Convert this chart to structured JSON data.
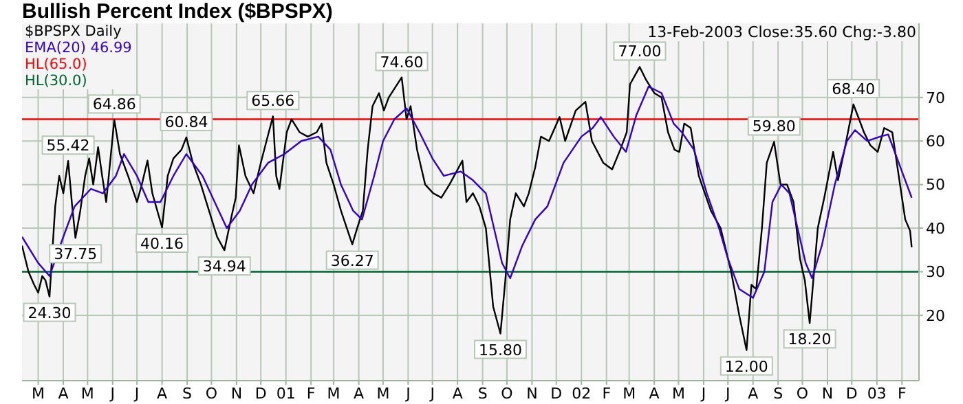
{
  "chart_data": {
    "type": "line",
    "title": "Bullish Percent Index ($BPSPX)",
    "xlim": [
      "2000-02-10",
      "2003-02-22"
    ],
    "ylim": [
      5,
      87
    ],
    "yticks": [
      20,
      30,
      40,
      50,
      60,
      70
    ],
    "xticks": [
      {
        "value": "2000-03-01",
        "label": "M"
      },
      {
        "value": "2000-04-01",
        "label": "A"
      },
      {
        "value": "2000-05-01",
        "label": "M"
      },
      {
        "value": "2000-06-01",
        "label": "J"
      },
      {
        "value": "2000-07-01",
        "label": "J"
      },
      {
        "value": "2000-08-01",
        "label": "A"
      },
      {
        "value": "2000-09-01",
        "label": "S"
      },
      {
        "value": "2000-10-01",
        "label": "O"
      },
      {
        "value": "2000-11-01",
        "label": "N"
      },
      {
        "value": "2000-12-01",
        "label": "D"
      },
      {
        "value": "2001-01-01",
        "label": "01"
      },
      {
        "value": "2001-02-01",
        "label": "F"
      },
      {
        "value": "2001-03-01",
        "label": "M"
      },
      {
        "value": "2001-04-01",
        "label": "A"
      },
      {
        "value": "2001-05-01",
        "label": "M"
      },
      {
        "value": "2001-06-01",
        "label": "J"
      },
      {
        "value": "2001-07-01",
        "label": "J"
      },
      {
        "value": "2001-08-01",
        "label": "A"
      },
      {
        "value": "2001-09-01",
        "label": "S"
      },
      {
        "value": "2001-10-01",
        "label": "O"
      },
      {
        "value": "2001-11-01",
        "label": "N"
      },
      {
        "value": "2001-12-01",
        "label": "D"
      },
      {
        "value": "2002-01-01",
        "label": "02"
      },
      {
        "value": "2002-02-01",
        "label": "F"
      },
      {
        "value": "2002-03-01",
        "label": "M"
      },
      {
        "value": "2002-04-01",
        "label": "A"
      },
      {
        "value": "2002-05-01",
        "label": "M"
      },
      {
        "value": "2002-06-01",
        "label": "J"
      },
      {
        "value": "2002-07-01",
        "label": "J"
      },
      {
        "value": "2002-08-01",
        "label": "A"
      },
      {
        "value": "2002-09-01",
        "label": "S"
      },
      {
        "value": "2002-10-01",
        "label": "O"
      },
      {
        "value": "2002-11-01",
        "label": "N"
      },
      {
        "value": "2002-12-01",
        "label": "D"
      },
      {
        "value": "2003-01-01",
        "label": "03"
      },
      {
        "value": "2003-02-01",
        "label": "F"
      }
    ],
    "grid": true,
    "legend": "top left",
    "marker": "none",
    "line_style": "solid",
    "series": [
      {
        "name": "$BPSPX Daily",
        "color": "#000000",
        "x": [
          "2000-02-10",
          "2000-02-18",
          "2000-02-25",
          "2000-03-01",
          "2000-03-06",
          "2000-03-10",
          "2000-03-15",
          "2000-03-22",
          "2000-03-27",
          "2000-04-01",
          "2000-04-07",
          "2000-04-12",
          "2000-04-16",
          "2000-04-22",
          "2000-04-28",
          "2000-05-03",
          "2000-05-08",
          "2000-05-14",
          "2000-05-19",
          "2000-05-24",
          "2000-06-03",
          "2000-06-10",
          "2000-06-20",
          "2000-07-01",
          "2000-07-07",
          "2000-07-14",
          "2000-07-20",
          "2000-08-01",
          "2000-08-08",
          "2000-08-15",
          "2000-08-25",
          "2000-08-31",
          "2000-09-08",
          "2000-09-18",
          "2000-09-28",
          "2000-10-08",
          "2000-10-17",
          "2000-10-25",
          "2000-10-31",
          "2000-11-04",
          "2000-11-12",
          "2000-11-22",
          "2000-12-01",
          "2000-12-08",
          "2000-12-16",
          "2000-12-20",
          "2000-12-24",
          "2001-01-02",
          "2001-01-08",
          "2001-01-18",
          "2001-01-28",
          "2001-02-08",
          "2001-02-14",
          "2001-02-20",
          "2001-03-01",
          "2001-03-10",
          "2001-03-24",
          "2001-03-30",
          "2001-04-06",
          "2001-04-12",
          "2001-04-18",
          "2001-04-26",
          "2001-05-02",
          "2001-05-08",
          "2001-05-24",
          "2001-05-30",
          "2001-06-04",
          "2001-06-12",
          "2001-06-22",
          "2001-07-02",
          "2001-07-12",
          "2001-07-22",
          "2001-08-07",
          "2001-08-12",
          "2001-08-20",
          "2001-08-28",
          "2001-09-05",
          "2001-09-14",
          "2001-09-23",
          "2001-09-29",
          "2001-10-05",
          "2001-10-12",
          "2001-10-22",
          "2001-10-28",
          "2001-11-05",
          "2001-11-12",
          "2001-11-22",
          "2001-12-05",
          "2001-12-12",
          "2001-12-25",
          "2002-01-06",
          "2002-01-14",
          "2002-01-28",
          "2002-02-08",
          "2002-02-18",
          "2002-02-26",
          "2002-03-02",
          "2002-03-14",
          "2002-03-22",
          "2002-04-01",
          "2002-04-10",
          "2002-04-18",
          "2002-04-26",
          "2002-05-02",
          "2002-05-08",
          "2002-05-16",
          "2002-05-26",
          "2002-06-10",
          "2002-06-22",
          "2002-07-05",
          "2002-07-15",
          "2002-07-24",
          "2002-07-30",
          "2002-08-05",
          "2002-08-12",
          "2002-08-18",
          "2002-08-27",
          "2002-09-04",
          "2002-09-12",
          "2002-09-20",
          "2002-09-28",
          "2002-10-04",
          "2002-10-10",
          "2002-10-20",
          "2002-10-28",
          "2002-11-08",
          "2002-11-14",
          "2002-11-22",
          "2002-12-03",
          "2002-12-10",
          "2002-12-16",
          "2002-12-24",
          "2003-01-02",
          "2003-01-10",
          "2003-01-20",
          "2003-01-28",
          "2003-02-05",
          "2003-02-11",
          "2003-02-13"
        ],
        "values": [
          36,
          30,
          27,
          25.2,
          29,
          28,
          24.3,
          45,
          52,
          48,
          55.42,
          45,
          37.75,
          44,
          52,
          56,
          50,
          58.6,
          52,
          46,
          64.86,
          57,
          52,
          46,
          50,
          55.5,
          48,
          40.16,
          52,
          56,
          58,
          60.84,
          55,
          50,
          44,
          38,
          34.94,
          42,
          47,
          59,
          52,
          48,
          55,
          60,
          65.66,
          52,
          49,
          62,
          65,
          62,
          61,
          62,
          64,
          55,
          50,
          44,
          36.27,
          40,
          44,
          58,
          68,
          71,
          67,
          70,
          74.6,
          65,
          68,
          58,
          50,
          48,
          47,
          50,
          55.5,
          46,
          48,
          45,
          40,
          22,
          15.8,
          28,
          42,
          48,
          45,
          48,
          54,
          61,
          60,
          65.5,
          60,
          67,
          69,
          60,
          55,
          53.5,
          58,
          62,
          73,
          77,
          74,
          71,
          70,
          62,
          58,
          57.5,
          64,
          63,
          52,
          44,
          40,
          30,
          20,
          12,
          27,
          26,
          40,
          55,
          59.8,
          50,
          50,
          46,
          33,
          28,
          18.2,
          40,
          47,
          57.5,
          51,
          58,
          68.4,
          65,
          62,
          59,
          57.5,
          63,
          62,
          52,
          42,
          39.4,
          35.6
        ]
      },
      {
        "name": "EMA(20) 46.99",
        "color": "#3300cc",
        "x": [
          "2000-02-10",
          "2000-03-01",
          "2000-03-15",
          "2000-04-01",
          "2000-04-15",
          "2000-05-05",
          "2000-05-20",
          "2000-06-05",
          "2000-06-15",
          "2000-07-01",
          "2000-07-15",
          "2000-07-30",
          "2000-08-15",
          "2000-08-31",
          "2000-09-20",
          "2000-10-10",
          "2000-10-20",
          "2000-11-05",
          "2000-11-20",
          "2000-12-10",
          "2000-12-30",
          "2001-01-20",
          "2001-02-10",
          "2001-02-25",
          "2001-03-10",
          "2001-03-25",
          "2001-04-05",
          "2001-04-20",
          "2001-05-01",
          "2001-05-15",
          "2001-05-30",
          "2001-06-15",
          "2001-07-01",
          "2001-07-15",
          "2001-08-05",
          "2001-08-20",
          "2001-09-05",
          "2001-09-15",
          "2001-09-25",
          "2001-10-05",
          "2001-10-20",
          "2001-11-05",
          "2001-11-20",
          "2001-12-10",
          "2002-01-01",
          "2002-01-15",
          "2002-01-25",
          "2002-02-10",
          "2002-02-25",
          "2002-03-10",
          "2002-03-25",
          "2002-04-10",
          "2002-04-25",
          "2002-05-05",
          "2002-05-20",
          "2002-06-05",
          "2002-06-20",
          "2002-07-01",
          "2002-07-15",
          "2002-08-01",
          "2002-08-15",
          "2002-08-25",
          "2002-09-05",
          "2002-09-15",
          "2002-09-25",
          "2002-10-05",
          "2002-10-13",
          "2002-10-25",
          "2002-11-10",
          "2002-11-25",
          "2002-12-05",
          "2002-12-20",
          "2003-01-05",
          "2003-01-15",
          "2003-01-28",
          "2003-02-13"
        ],
        "values": [
          38,
          32,
          29,
          38,
          45,
          49,
          48,
          52,
          57,
          52,
          46,
          46,
          52,
          57,
          52,
          44,
          40,
          44,
          50,
          55,
          57,
          60,
          61,
          58,
          50,
          44,
          42,
          52,
          60,
          65,
          67.5,
          62,
          56,
          52,
          53,
          51,
          48,
          40,
          32,
          28.5,
          36,
          42,
          45,
          55,
          61,
          63,
          65.5,
          61,
          57.5,
          66,
          72.5,
          71,
          64,
          62,
          58,
          48,
          40,
          33,
          26,
          24,
          30,
          46,
          50,
          48,
          40,
          32,
          28.5,
          36,
          50,
          60,
          62.5,
          60,
          61,
          61.5,
          55,
          46.99
        ]
      }
    ],
    "ref_lines": [
      {
        "axis": "y",
        "value": 65,
        "label": "HL(65.0)",
        "color": "#ff0000"
      },
      {
        "axis": "y",
        "value": 30,
        "label": "HL(30.0)",
        "color": "#006633"
      }
    ],
    "annotations": [
      "13-Feb-2003 Close:35.60 Chg:-3.80",
      {
        "text": "24.30",
        "x": "2000-03-15",
        "y": 24.3
      },
      {
        "text": "55.42",
        "x": "2000-04-07",
        "y": 55.42
      },
      {
        "text": "37.75",
        "x": "2000-04-16",
        "y": 37.75
      },
      {
        "text": "64.86",
        "x": "2000-06-03",
        "y": 64.86
      },
      {
        "text": "40.16",
        "x": "2000-08-01",
        "y": 40.16
      },
      {
        "text": "60.84",
        "x": "2000-08-31",
        "y": 60.84
      },
      {
        "text": "34.94",
        "x": "2000-10-17",
        "y": 34.94
      },
      {
        "text": "65.66",
        "x": "2000-12-16",
        "y": 65.66
      },
      {
        "text": "36.27",
        "x": "2001-03-24",
        "y": 36.27
      },
      {
        "text": "74.60",
        "x": "2001-05-24",
        "y": 74.6
      },
      {
        "text": "15.80",
        "x": "2001-09-23",
        "y": 15.8
      },
      {
        "text": "77.00",
        "x": "2002-03-14",
        "y": 77
      },
      {
        "text": "12.00",
        "x": "2002-07-24",
        "y": 12
      },
      {
        "text": "59.80",
        "x": "2002-08-27",
        "y": 59.8
      },
      {
        "text": "18.20",
        "x": "2002-10-10",
        "y": 18.2
      },
      {
        "text": "68.40",
        "x": "2002-12-03",
        "y": 68.4
      }
    ]
  }
}
